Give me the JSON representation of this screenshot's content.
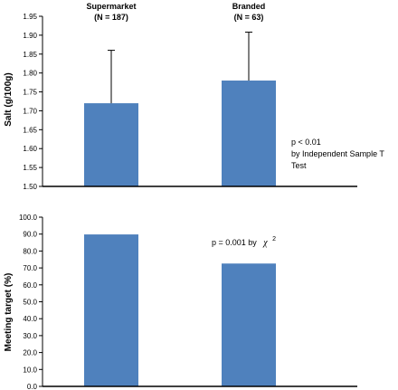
{
  "chart_data": [
    {
      "type": "bar",
      "categories": [
        "Supermarket\n(N = 187)",
        "Branded\n(N = 63)"
      ],
      "category_lines": [
        [
          "Supermarket",
          "(N = 187)"
        ],
        [
          "Branded",
          "(N = 63)"
        ]
      ],
      "values": [
        1.72,
        1.78
      ],
      "error_bars_upper": [
        0.14,
        0.128
      ],
      "ylabel": "Salt (g/100g)",
      "ylim": [
        1.5,
        1.95
      ],
      "yticks": [
        "1.50",
        "1.55",
        "1.60",
        "1.65",
        "1.70",
        "1.75",
        "1.80",
        "1.85",
        "1.90",
        "1.95"
      ],
      "grid": false,
      "annotation_lines": [
        "p < 0.01",
        "by Independent Sample T",
        "Test"
      ],
      "bar_color": "#4f81bd"
    },
    {
      "type": "bar",
      "categories": [
        "Supermarket",
        "Branded"
      ],
      "values": [
        89.8,
        72.6
      ],
      "ylabel": "Meeting target (%)",
      "ylim": [
        0,
        100
      ],
      "yticks": [
        "0.0",
        "10.0",
        "20.0",
        "30.0",
        "40.0",
        "50.0",
        "60.0",
        "70.0",
        "80.0",
        "90.0",
        "100.0"
      ],
      "grid": false,
      "annotation": "p = 0.001  by",
      "annotation_symbol": "χ",
      "annotation_superscript": "2",
      "bar_color": "#4f81bd"
    }
  ]
}
